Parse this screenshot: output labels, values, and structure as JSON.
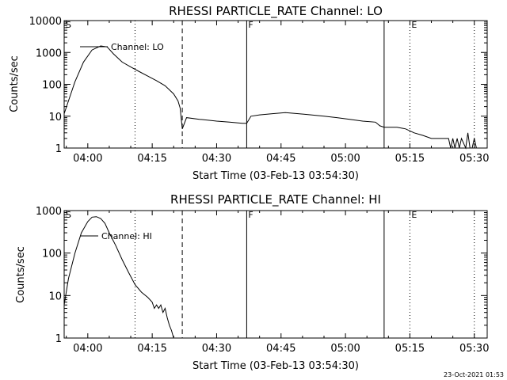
{
  "timestamp": "23-Oct-2021 01:53",
  "chart_data": [
    {
      "type": "line",
      "title": "RHESSI PARTICLE_RATE Channel: LO",
      "xlabel": "Start Time (03-Feb-13 03:54:30)",
      "ylabel": "Counts/sec",
      "yscale": "log",
      "ylim": [
        1,
        10000
      ],
      "xlim": [
        "03:54:30",
        "05:33:00"
      ],
      "xticks": [
        "04:00",
        "04:15",
        "04:30",
        "04:45",
        "05:00",
        "05:15",
        "05:30"
      ],
      "yticks": [
        "1",
        "10",
        "100",
        "1000",
        "10000"
      ],
      "legend": {
        "label": "Channel: LO",
        "placement": "top-left"
      },
      "markers": [
        {
          "label": "S",
          "time": "03:54:30",
          "style": "solid"
        },
        {
          "label": "",
          "time": "04:11:00",
          "style": "dotted"
        },
        {
          "label": "",
          "time": "04:22:00",
          "style": "dashed"
        },
        {
          "label": "F",
          "time": "04:37:00",
          "style": "solid"
        },
        {
          "label": "",
          "time": "05:09:00",
          "style": "solid"
        },
        {
          "label": "E",
          "time": "05:15:00",
          "style": "dotted"
        },
        {
          "label": "",
          "time": "05:30:00",
          "style": "dotted"
        }
      ],
      "series": [
        {
          "x": [
            "03:54:30",
            "03:55:30",
            "03:57:00",
            "03:59:00",
            "04:01:00",
            "04:03:00",
            "04:04:30",
            "04:06:00",
            "04:08:00",
            "04:10:00",
            "04:12:00",
            "04:14:00",
            "04:16:00",
            "04:18:00",
            "04:20:00",
            "04:21:00",
            "04:21:30",
            "04:22:00",
            "04:23:00",
            "04:26:00",
            "04:30:00",
            "04:33:00",
            "04:36:00",
            "04:37:00",
            "04:38:00",
            "04:40:00",
            "04:43:00",
            "04:46:00",
            "04:49:00",
            "04:52:00",
            "04:55:00",
            "04:58:00",
            "05:01:00",
            "05:04:00",
            "05:07:00",
            "05:08:00",
            "05:09:00",
            "05:12:00",
            "05:14:00",
            "05:16:00",
            "05:18:00",
            "05:20:00",
            "05:22:00",
            "05:24:00",
            "05:24:30",
            "05:25:00",
            "05:25:30",
            "05:26:00",
            "05:26:30",
            "05:27:00",
            "05:28:00",
            "05:28:30",
            "05:29:00",
            "05:29:30",
            "05:30:00",
            "05:30:30"
          ],
          "y": [
            12,
            30,
            120,
            500,
            1200,
            1600,
            1500,
            900,
            500,
            350,
            250,
            180,
            130,
            90,
            50,
            30,
            18,
            4,
            9,
            8,
            7,
            6.5,
            6,
            6,
            10,
            11,
            12,
            13,
            12,
            11,
            10,
            9,
            8,
            7,
            6.5,
            5,
            4.5,
            4.5,
            4,
            3,
            2.5,
            2,
            2,
            2,
            1,
            2,
            1,
            2,
            1,
            2,
            1,
            3,
            1,
            1,
            2,
            1
          ]
        }
      ]
    },
    {
      "type": "line",
      "title": "RHESSI PARTICLE_RATE Channel: HI",
      "xlabel": "Start Time (03-Feb-13 03:54:30)",
      "ylabel": "Counts/sec",
      "yscale": "log",
      "ylim": [
        1,
        1000
      ],
      "xlim": [
        "03:54:30",
        "05:33:00"
      ],
      "xticks": [
        "04:00",
        "04:15",
        "04:30",
        "04:45",
        "05:00",
        "05:15",
        "05:30"
      ],
      "yticks": [
        "1",
        "10",
        "100",
        "1000"
      ],
      "legend": {
        "label": "Channel: HI",
        "placement": "top-left"
      },
      "markers": [
        {
          "label": "S",
          "time": "03:54:30",
          "style": "solid"
        },
        {
          "label": "",
          "time": "04:11:00",
          "style": "dotted"
        },
        {
          "label": "",
          "time": "04:22:00",
          "style": "dashed"
        },
        {
          "label": "F",
          "time": "04:37:00",
          "style": "solid"
        },
        {
          "label": "",
          "time": "05:09:00",
          "style": "solid"
        },
        {
          "label": "E",
          "time": "05:15:00",
          "style": "dotted"
        },
        {
          "label": "",
          "time": "05:30:00",
          "style": "dotted"
        }
      ],
      "series": [
        {
          "x": [
            "03:54:30",
            "03:55:30",
            "03:57:00",
            "03:58:30",
            "04:00:00",
            "04:01:00",
            "04:02:00",
            "04:03:00",
            "04:04:00",
            "04:05:00",
            "04:06:30",
            "04:08:00",
            "04:09:30",
            "04:11:00",
            "04:12:30",
            "04:14:00",
            "04:15:00",
            "04:15:30",
            "04:16:00",
            "04:16:30",
            "04:17:00",
            "04:17:30",
            "04:18:00",
            "04:18:30",
            "04:19:00",
            "04:19:30",
            "04:20:00"
          ],
          "y": [
            6,
            25,
            100,
            300,
            550,
            700,
            720,
            650,
            500,
            300,
            150,
            70,
            35,
            18,
            12,
            9,
            7,
            5,
            6,
            5,
            6,
            4,
            5,
            3,
            2,
            1.5,
            1
          ]
        }
      ]
    }
  ]
}
